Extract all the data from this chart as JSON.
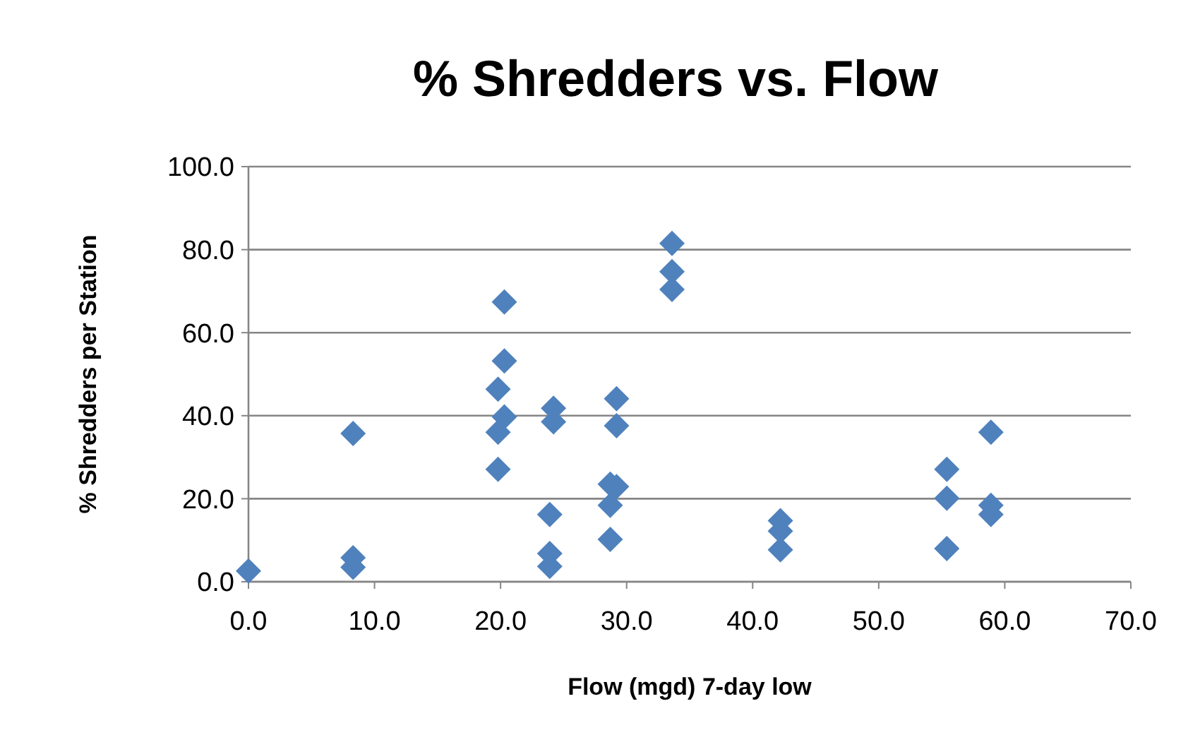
{
  "chart_data": {
    "type": "scatter",
    "title": "% Shredders vs. Flow",
    "xlabel": "Flow (mgd) 7-day low",
    "ylabel": "% Shredders per Station",
    "xlim": [
      0,
      70
    ],
    "xticks": [
      {
        "value": 0,
        "label": "0.0"
      },
      {
        "value": 10,
        "label": "10.0"
      },
      {
        "value": 20,
        "label": "20.0"
      },
      {
        "value": 30,
        "label": "30.0"
      },
      {
        "value": 40,
        "label": "40.0"
      },
      {
        "value": 50,
        "label": "50.0"
      },
      {
        "value": 60,
        "label": "60.0"
      },
      {
        "value": 70,
        "label": "70.0"
      }
    ],
    "ylim": [
      0,
      100
    ],
    "yticks": [
      {
        "value": 0,
        "label": "0.0"
      },
      {
        "value": 20,
        "label": "20.0"
      },
      {
        "value": 40,
        "label": "40.0"
      },
      {
        "value": 60,
        "label": "60.0"
      },
      {
        "value": 80,
        "label": "80.0"
      },
      {
        "value": 100,
        "label": "100.0"
      }
    ],
    "grid": "y",
    "marker": "diamond",
    "series": [
      {
        "color": "#4f81bd",
        "x": [
          0,
          8.3,
          8.3,
          8.3,
          20.3,
          20.3,
          19.8,
          20.3,
          19.8,
          19.8,
          24.2,
          24.2,
          23.9,
          23.9,
          23.9,
          29.2,
          29.2,
          28.7,
          29.2,
          28.7,
          28.7,
          33.6,
          33.6,
          33.6,
          42.2,
          42.2,
          42.2,
          55.4,
          55.4,
          55.4,
          58.9,
          58.9,
          58.9
        ],
        "values": [
          2.6,
          35.7,
          5.8,
          3.5,
          67.4,
          53.2,
          46.4,
          39.7,
          36.0,
          27.1,
          41.8,
          38.5,
          16.2,
          6.8,
          3.7,
          44.1,
          37.6,
          23.5,
          22.9,
          18.4,
          10.2,
          81.5,
          74.7,
          70.4,
          14.7,
          12.2,
          7.7,
          27.1,
          20.1,
          8.0,
          36.0,
          18.4,
          16.2
        ]
      }
    ]
  }
}
